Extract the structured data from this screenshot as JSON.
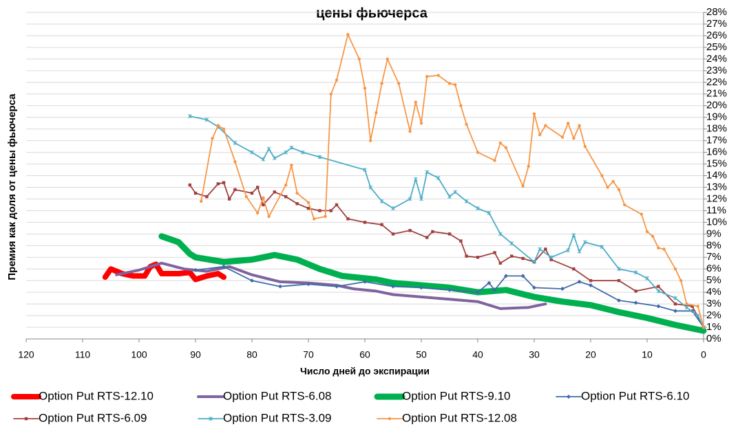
{
  "chart_data": {
    "type": "line",
    "title": "цены фьючерса",
    "x_label": "Число дней до экспирации",
    "y_label": "Премия как доля от цены фьючерса",
    "xlim": [
      120,
      0
    ],
    "xticks": [
      120,
      110,
      100,
      90,
      80,
      70,
      60,
      50,
      40,
      30,
      20,
      10,
      0
    ],
    "ylim": [
      0,
      28
    ],
    "yticks": [
      {
        "value": 0,
        "label": "0%"
      },
      {
        "value": 1,
        "label": "1%"
      },
      {
        "value": 2,
        "label": "2%"
      },
      {
        "value": 3,
        "label": "3%"
      },
      {
        "value": 4,
        "label": "4%"
      },
      {
        "value": 5,
        "label": "5%"
      },
      {
        "value": 6,
        "label": "6%"
      },
      {
        "value": 7,
        "label": "7%"
      },
      {
        "value": 8,
        "label": "8%"
      },
      {
        "value": 9,
        "label": "9%"
      },
      {
        "value": 10,
        "label": "10%"
      },
      {
        "value": 11,
        "label": "11%"
      },
      {
        "value": 12,
        "label": "12%"
      },
      {
        "value": 13,
        "label": "13%"
      },
      {
        "value": 14,
        "label": "14%"
      },
      {
        "value": 15,
        "label": "15%"
      },
      {
        "value": 16,
        "label": "16%"
      },
      {
        "value": 17,
        "label": "17%"
      },
      {
        "value": 18,
        "label": "18%"
      },
      {
        "value": 19,
        "label": "19%"
      },
      {
        "value": 20,
        "label": "20%"
      },
      {
        "value": 21,
        "label": "21%"
      },
      {
        "value": 22,
        "label": "22%"
      },
      {
        "value": 23,
        "label": "23%"
      },
      {
        "value": 24,
        "label": "24%"
      },
      {
        "value": 25,
        "label": "25%"
      },
      {
        "value": 26,
        "label": "26%"
      },
      {
        "value": 27,
        "label": "27%"
      },
      {
        "value": 28,
        "label": "28%"
      }
    ],
    "grid": true,
    "series": [
      {
        "name": "Option Put RTS-12.10",
        "color": "#ff0000",
        "width": 8,
        "marker": "none",
        "x": [
          106,
          105,
          103,
          101,
          99,
          98,
          97,
          96,
          93,
          91,
          90,
          88,
          86,
          85
        ],
        "values": [
          5.3,
          6.0,
          5.6,
          5.4,
          5.4,
          6.2,
          6.4,
          5.6,
          5.6,
          5.7,
          5.1,
          5.4,
          5.6,
          5.3
        ]
      },
      {
        "name": "Option Put RTS-6.08",
        "color": "#7e649e",
        "width": 4,
        "marker": "none",
        "x": [
          104,
          100,
          96,
          92,
          88,
          84,
          80,
          75,
          70,
          65,
          62,
          58,
          55,
          50,
          45,
          40,
          36,
          31,
          28
        ],
        "values": [
          5.5,
          5.9,
          6.5,
          6.0,
          5.8,
          6.2,
          5.5,
          4.9,
          4.8,
          4.6,
          4.3,
          4.1,
          3.8,
          3.6,
          3.4,
          3.2,
          2.6,
          2.7,
          3.0
        ]
      },
      {
        "name": "Option Put RTS-9.10",
        "color": "#00b050",
        "width": 9,
        "marker": "none",
        "x": [
          96,
          93,
          91,
          90,
          85,
          80,
          78,
          76,
          72,
          68,
          64,
          58,
          55,
          50,
          45,
          40,
          35,
          30,
          25,
          20,
          15,
          10,
          5,
          0
        ],
        "values": [
          8.8,
          8.3,
          7.3,
          7.0,
          6.6,
          6.8,
          7.0,
          7.2,
          6.8,
          6.0,
          5.4,
          5.1,
          4.8,
          4.6,
          4.4,
          4.0,
          4.2,
          3.6,
          3.2,
          2.9,
          2.3,
          1.8,
          1.2,
          0.7
        ]
      },
      {
        "name": "Option Put RTS-6.10",
        "color": "#3f6aa8",
        "width": 1.8,
        "marker": "diamond",
        "x": [
          90,
          85,
          80,
          75,
          70,
          65,
          60,
          55,
          50,
          45,
          40,
          38,
          37,
          35,
          32,
          30,
          25,
          22,
          20,
          15,
          12,
          8,
          5,
          2,
          0
        ],
        "values": [
          5.9,
          6.2,
          5.0,
          4.5,
          4.7,
          4.5,
          4.9,
          4.5,
          4.4,
          4.2,
          4.0,
          4.8,
          4.2,
          5.4,
          5.4,
          4.4,
          4.3,
          4.9,
          4.6,
          3.3,
          3.1,
          2.8,
          2.4,
          2.4,
          1.0
        ]
      },
      {
        "name": "Option Put RTS-6.09",
        "color": "#a0413e",
        "width": 1.8,
        "marker": "square",
        "x": [
          91,
          90,
          88,
          86,
          85,
          84,
          83,
          80,
          79,
          78,
          76,
          74,
          72,
          70,
          68,
          66,
          65,
          63,
          60,
          57,
          55,
          52,
          49,
          48,
          45,
          43,
          42,
          40,
          37,
          36,
          34,
          32,
          30,
          28,
          27,
          23,
          20,
          15,
          12,
          8,
          5,
          2,
          0
        ],
        "values": [
          13.2,
          12.5,
          12.2,
          13.3,
          13.4,
          12.0,
          12.8,
          12.5,
          13.0,
          11.5,
          12.6,
          12.2,
          11.6,
          11.2,
          11.0,
          11.0,
          11.5,
          10.3,
          10.0,
          9.8,
          9.0,
          9.3,
          8.7,
          9.2,
          9.0,
          8.4,
          7.1,
          7.0,
          7.4,
          6.5,
          7.1,
          6.9,
          6.6,
          7.7,
          6.8,
          6.0,
          5.0,
          5.0,
          4.1,
          4.5,
          3.0,
          2.8,
          1.0
        ]
      },
      {
        "name": "Option Put RTS-3.09",
        "color": "#4bacc6",
        "width": 1.8,
        "marker": "star",
        "x": [
          91,
          88,
          86,
          83,
          80,
          78,
          77,
          76,
          74,
          73,
          71,
          68,
          60,
          59,
          57,
          55,
          52,
          51,
          50,
          49,
          47,
          45,
          44,
          42,
          40,
          38,
          36,
          34,
          30,
          29,
          27,
          24,
          23,
          22,
          21,
          18,
          15,
          12,
          10,
          8,
          5,
          3,
          1,
          0
        ],
        "values": [
          19.1,
          18.8,
          18.2,
          16.8,
          16.0,
          15.4,
          16.3,
          15.5,
          16.0,
          16.4,
          16.0,
          15.6,
          14.5,
          13.0,
          11.8,
          11.2,
          12.0,
          13.7,
          12.0,
          14.3,
          13.8,
          12.2,
          12.6,
          11.8,
          11.2,
          10.8,
          9.0,
          8.2,
          6.6,
          7.7,
          7.0,
          7.6,
          8.9,
          7.5,
          8.3,
          7.9,
          6.0,
          5.7,
          5.2,
          4.1,
          3.5,
          2.7,
          2.0,
          1.0
        ]
      },
      {
        "name": "Option Put RTS-12.08",
        "color": "#f79646",
        "width": 1.8,
        "marker": "circle",
        "x": [
          89,
          87,
          86,
          85,
          83,
          81,
          79,
          78,
          77,
          74,
          73,
          72,
          70,
          69,
          67,
          66,
          65,
          63,
          61,
          60,
          59,
          58,
          57,
          56,
          54,
          52,
          51,
          50,
          49,
          47,
          45,
          44,
          43,
          42,
          40,
          37,
          36,
          35,
          32,
          31,
          30,
          29,
          28,
          25,
          24,
          23,
          22,
          21,
          18,
          17,
          16,
          15,
          14,
          11,
          10,
          9,
          8,
          7,
          5,
          4,
          3,
          1,
          0
        ],
        "values": [
          11.8,
          17.2,
          18.3,
          18.0,
          15.2,
          12.2,
          10.8,
          12.1,
          10.5,
          13.2,
          14.9,
          12.5,
          11.7,
          10.3,
          10.5,
          21.0,
          22.2,
          26.1,
          24.0,
          21.5,
          17.0,
          19.4,
          21.9,
          24.0,
          21.9,
          17.8,
          20.3,
          18.5,
          22.5,
          22.6,
          21.9,
          21.8,
          20.0,
          18.4,
          16.0,
          15.3,
          16.8,
          16.4,
          13.1,
          14.8,
          19.3,
          17.5,
          18.3,
          17.3,
          18.5,
          17.2,
          18.3,
          16.5,
          14.0,
          13.0,
          13.5,
          12.8,
          11.5,
          10.7,
          9.2,
          8.8,
          7.8,
          7.7,
          6.0,
          5.0,
          3.0,
          2.8,
          1.0
        ]
      }
    ]
  }
}
